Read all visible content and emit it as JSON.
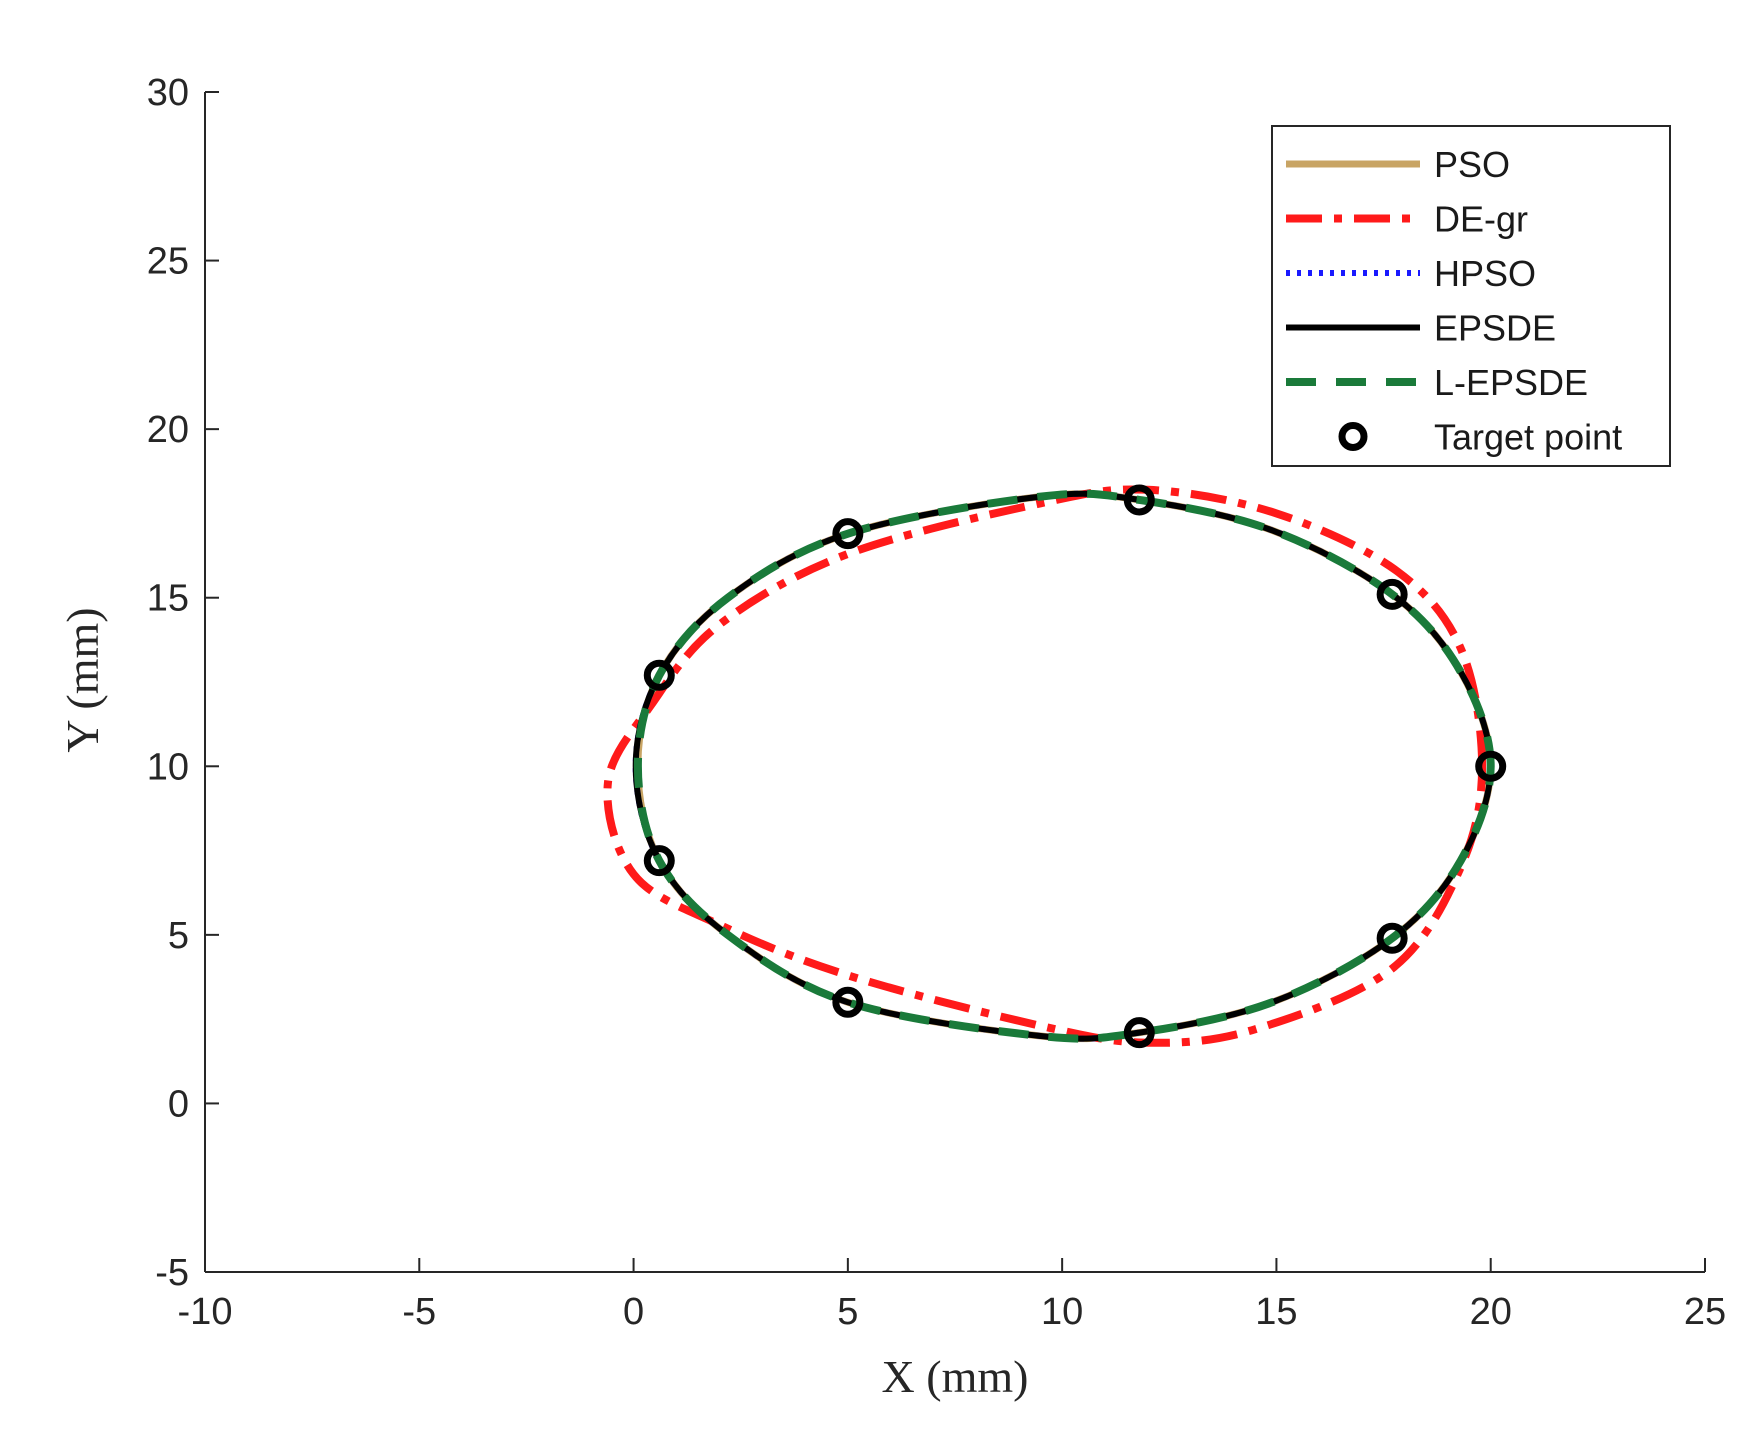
{
  "chart_data": {
    "type": "line",
    "title": "",
    "xlabel": "X (mm)",
    "ylabel": "Y (mm)",
    "xlim": [
      -10,
      25
    ],
    "ylim": [
      -5,
      30
    ],
    "xticks": [
      -10,
      -5,
      0,
      5,
      10,
      15,
      20,
      25
    ],
    "yticks": [
      -5,
      0,
      5,
      10,
      15,
      20,
      25,
      30
    ],
    "grid": false,
    "legend_position": "top-right",
    "series": [
      {
        "name": "PSO",
        "style": "solid",
        "color": "#c8a464",
        "x": [
          20.0,
          19.3,
          17.7,
          14.9,
          11.8,
          9.5,
          5.0,
          2.2,
          0.6,
          0.1,
          0.6,
          2.2,
          5.0,
          9.5,
          11.8,
          14.9,
          17.7,
          19.3,
          20.0
        ],
        "y": [
          10.0,
          12.8,
          15.1,
          17.0,
          17.9,
          18.0,
          16.9,
          15.0,
          12.7,
          10.0,
          7.2,
          5.0,
          3.0,
          2.0,
          2.1,
          3.0,
          4.9,
          7.2,
          10.0
        ]
      },
      {
        "name": "DE-gr",
        "style": "dashdot",
        "color": "#ff1a1a",
        "x": [
          19.8,
          19.3,
          17.8,
          15.0,
          12.0,
          9.5,
          5.0,
          2.0,
          0.4,
          -0.6,
          0.0,
          2.0,
          5.0,
          9.5,
          12.0,
          14.5,
          17.7,
          19.3,
          19.8
        ],
        "y": [
          10.0,
          13.5,
          15.8,
          17.5,
          18.2,
          17.8,
          16.3,
          14.2,
          11.8,
          9.5,
          6.8,
          5.3,
          3.8,
          2.3,
          1.8,
          2.2,
          4.0,
          7.0,
          10.0
        ]
      },
      {
        "name": "HPSO",
        "style": "dotted",
        "color": "#1a1aff",
        "x": [
          20.0,
          19.3,
          17.7,
          14.9,
          11.8,
          9.5,
          5.0,
          2.2,
          0.6,
          0.05,
          0.6,
          2.2,
          5.0,
          9.5,
          11.8,
          14.9,
          17.7,
          19.3,
          20.0
        ],
        "y": [
          10.0,
          12.8,
          15.1,
          17.0,
          17.9,
          18.0,
          16.9,
          15.0,
          12.7,
          10.0,
          7.2,
          5.0,
          3.0,
          2.0,
          2.1,
          3.0,
          4.9,
          7.2,
          10.0
        ]
      },
      {
        "name": "EPSDE",
        "style": "solid",
        "color": "#000000",
        "x": [
          20.0,
          19.3,
          17.7,
          14.9,
          11.8,
          9.5,
          5.0,
          2.2,
          0.6,
          0.05,
          0.6,
          2.2,
          5.0,
          9.5,
          11.8,
          14.9,
          17.7,
          19.3,
          20.0
        ],
        "y": [
          10.0,
          12.8,
          15.1,
          17.0,
          17.9,
          18.0,
          16.9,
          15.0,
          12.7,
          10.0,
          7.2,
          5.0,
          3.0,
          2.0,
          2.1,
          3.0,
          4.9,
          7.2,
          10.0
        ]
      },
      {
        "name": "L-EPSDE",
        "style": "dashed",
        "color": "#1a7a3a",
        "x": [
          20.0,
          19.3,
          17.7,
          14.9,
          11.8,
          9.5,
          5.0,
          2.2,
          0.6,
          0.1,
          0.6,
          2.2,
          5.0,
          9.5,
          11.8,
          14.9,
          17.7,
          19.3,
          20.0
        ],
        "y": [
          10.0,
          12.8,
          15.1,
          17.0,
          17.9,
          18.0,
          16.9,
          15.0,
          12.7,
          10.0,
          7.2,
          5.0,
          3.0,
          2.0,
          2.1,
          3.0,
          4.9,
          7.2,
          10.0
        ]
      }
    ],
    "targets": {
      "name": "Target point",
      "color": "#000000",
      "points": [
        [
          20.0,
          10.0
        ],
        [
          17.7,
          15.1
        ],
        [
          11.8,
          17.9
        ],
        [
          5.0,
          16.9
        ],
        [
          0.6,
          12.7
        ],
        [
          0.6,
          7.2
        ],
        [
          5.0,
          3.0
        ],
        [
          11.8,
          2.1
        ],
        [
          17.7,
          4.9
        ]
      ]
    }
  }
}
